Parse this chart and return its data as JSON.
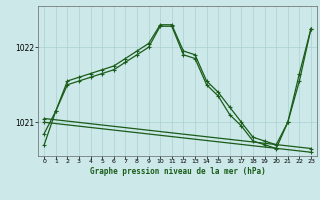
{
  "title": "Graphe pression niveau de la mer (hPa)",
  "bg_color": "#cce8e8",
  "grid_color": "#aad0d0",
  "line_color": "#1a5c1a",
  "xlim": [
    -0.5,
    23.5
  ],
  "ylim": [
    1020.55,
    1022.55
  ],
  "yticks": [
    1021,
    1022
  ],
  "xticks": [
    0,
    1,
    2,
    3,
    4,
    5,
    6,
    7,
    8,
    9,
    10,
    11,
    12,
    13,
    14,
    15,
    16,
    17,
    18,
    19,
    20,
    21,
    22,
    23
  ],
  "series1": {
    "x": [
      0,
      1,
      2,
      3,
      4,
      5,
      6,
      7,
      8,
      9,
      10,
      11,
      12,
      13,
      14,
      15,
      16,
      17,
      18,
      19,
      20,
      21,
      22,
      23
    ],
    "y": [
      1020.7,
      1021.15,
      1021.55,
      1021.6,
      1021.65,
      1021.7,
      1021.75,
      1021.85,
      1021.95,
      1022.05,
      1022.3,
      1022.3,
      1021.95,
      1021.9,
      1021.55,
      1021.4,
      1021.2,
      1021.0,
      1020.8,
      1020.75,
      1020.7,
      1021.0,
      1021.65,
      1022.25
    ]
  },
  "series2": {
    "x": [
      0,
      1,
      2,
      3,
      4,
      5,
      6,
      7,
      8,
      9,
      10,
      11,
      12,
      13,
      14,
      15,
      16,
      17,
      18,
      19,
      20,
      21,
      22,
      23
    ],
    "y": [
      1020.85,
      1021.15,
      1021.5,
      1021.55,
      1021.6,
      1021.65,
      1021.7,
      1021.8,
      1021.9,
      1022.0,
      1022.28,
      1022.28,
      1021.9,
      1021.85,
      1021.5,
      1021.35,
      1021.1,
      1020.95,
      1020.75,
      1020.7,
      1020.65,
      1021.0,
      1021.55,
      1022.25
    ]
  },
  "series3": {
    "x": [
      0,
      23
    ],
    "y": [
      1021.05,
      1020.65
    ]
  },
  "series4": {
    "x": [
      0,
      23
    ],
    "y": [
      1021.0,
      1020.6
    ]
  }
}
